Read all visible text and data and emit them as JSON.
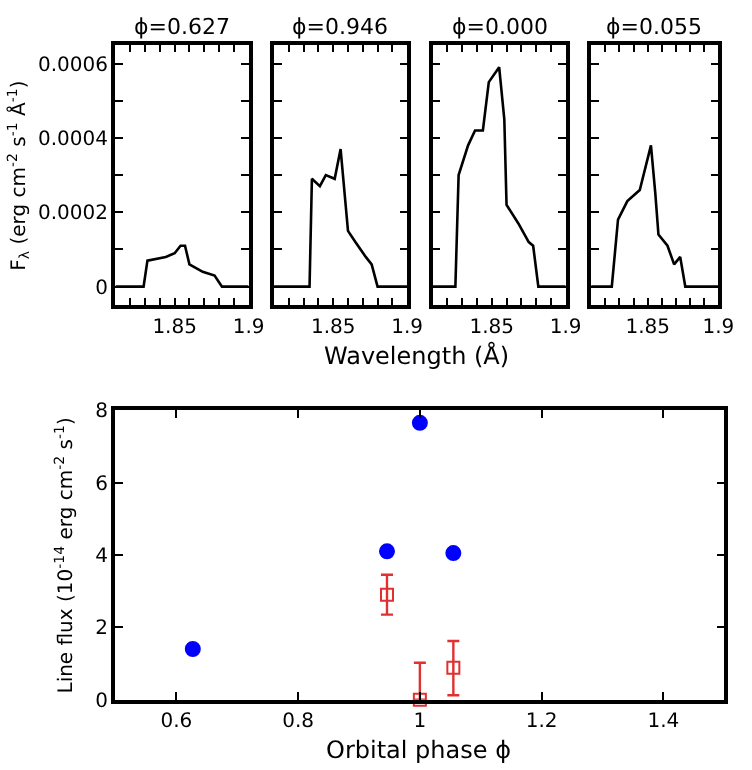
{
  "chart_data": [
    {
      "type": "line",
      "title": "ϕ=0.627",
      "ylabel": "F$_{λ}$ (erg cm$^{-2}$ s$^{-1}$ Å$^{-1}$)",
      "xlabel": "Wavelength (Å)",
      "xlim": [
        1.81,
        1.9
      ],
      "ylim": [
        -5e-05,
        0.00065
      ],
      "xticks": [
        {
          "value": 1.82,
          "label": null
        },
        {
          "value": 1.83,
          "label": null
        },
        {
          "value": 1.84,
          "label": null
        },
        1.85,
        {
          "value": 1.86,
          "label": null
        },
        {
          "value": 1.87,
          "label": null
        },
        {
          "value": 1.88,
          "label": null
        },
        {
          "value": 1.89,
          "label": null
        },
        1.9
      ],
      "yticks": [
        0,
        {
          "value": 0.0001,
          "label": null
        },
        0.0002,
        {
          "value": 0.0003,
          "label": null
        },
        0.0004,
        {
          "value": 0.0005,
          "label": null
        },
        0.0006
      ],
      "series": [
        {
          "color": "#000000",
          "x": [
            1.81,
            1.829,
            1.8316,
            1.844,
            1.85,
            1.854,
            1.857,
            1.86,
            1.869,
            1.877,
            1.882,
            1.9
          ],
          "values": [
            0,
            0,
            7e-05,
            8e-05,
            9e-05,
            0.00011,
            0.00011,
            6e-05,
            4e-05,
            3e-05,
            0,
            0
          ]
        }
      ]
    },
    {
      "type": "line",
      "title": "ϕ=0.946",
      "xlim": [
        1.81,
        1.9
      ],
      "ylim": [
        -5e-05,
        0.00065
      ],
      "xticks": [
        {
          "value": 1.82,
          "label": null
        },
        {
          "value": 1.83,
          "label": null
        },
        {
          "value": 1.84,
          "label": null
        },
        1.85,
        {
          "value": 1.86,
          "label": null
        },
        {
          "value": 1.87,
          "label": null
        },
        {
          "value": 1.88,
          "label": null
        },
        {
          "value": 1.89,
          "label": null
        },
        1.9
      ],
      "yticks": [
        0,
        {
          "value": 0.0001,
          "label": null
        },
        0.0002,
        {
          "value": 0.0003,
          "label": null
        },
        0.0004,
        {
          "value": 0.0005,
          "label": null
        },
        0.0006
      ],
      "tick_labels": "x",
      "series": [
        {
          "color": "#000000",
          "x": [
            1.81,
            1.834,
            1.8356,
            1.841,
            1.845,
            1.851,
            1.855,
            1.86,
            1.865,
            1.872,
            1.876,
            1.88,
            1.9
          ],
          "values": [
            0,
            0,
            0.00029,
            0.00027,
            0.0003,
            0.00029,
            0.00037,
            0.00015,
            0.00012,
            8e-05,
            6e-05,
            0,
            0
          ]
        }
      ]
    },
    {
      "type": "line",
      "title": "ϕ=0.000",
      "xlim": [
        1.81,
        1.9
      ],
      "ylim": [
        -5e-05,
        0.00065
      ],
      "xticks": [
        {
          "value": 1.82,
          "label": null
        },
        {
          "value": 1.83,
          "label": null
        },
        {
          "value": 1.84,
          "label": null
        },
        1.85,
        {
          "value": 1.86,
          "label": null
        },
        {
          "value": 1.87,
          "label": null
        },
        {
          "value": 1.88,
          "label": null
        },
        {
          "value": 1.89,
          "label": null
        },
        1.9
      ],
      "yticks": [
        0,
        {
          "value": 0.0001,
          "label": null
        },
        0.0002,
        {
          "value": 0.0003,
          "label": null
        },
        0.0004,
        {
          "value": 0.0005,
          "label": null
        },
        0.0006
      ],
      "tick_labels": "x",
      "series": [
        {
          "color": "#000000",
          "x": [
            1.81,
            1.8254,
            1.8276,
            1.834,
            1.8387,
            1.844,
            1.848,
            1.855,
            1.8585,
            1.86,
            1.868,
            1.875,
            1.878,
            1.8815,
            1.9
          ],
          "values": [
            0,
            0,
            0.0003,
            0.00038,
            0.00042,
            0.00042,
            0.00055,
            0.00059,
            0.00045,
            0.00022,
            0.00017,
            0.00012,
            0.00011,
            0,
            0
          ]
        }
      ]
    },
    {
      "type": "line",
      "title": "ϕ=0.055",
      "xlim": [
        1.81,
        1.9
      ],
      "ylim": [
        -5e-05,
        0.00065
      ],
      "xticks": [
        {
          "value": 1.82,
          "label": null
        },
        {
          "value": 1.83,
          "label": null
        },
        {
          "value": 1.84,
          "label": null
        },
        1.85,
        {
          "value": 1.86,
          "label": null
        },
        {
          "value": 1.87,
          "label": null
        },
        {
          "value": 1.88,
          "label": null
        },
        {
          "value": 1.89,
          "label": null
        },
        1.9
      ],
      "yticks": [
        0,
        {
          "value": 0.0001,
          "label": null
        },
        0.0002,
        {
          "value": 0.0003,
          "label": null
        },
        0.0004,
        {
          "value": 0.0005,
          "label": null
        },
        0.0006
      ],
      "tick_labels": "x",
      "series": [
        {
          "color": "#000000",
          "x": [
            1.81,
            1.8246,
            1.829,
            1.8356,
            1.8444,
            1.8523,
            1.8554,
            1.8576,
            1.864,
            1.8687,
            1.873,
            1.8766,
            1.9
          ],
          "values": [
            0,
            0,
            0.00018,
            0.00023,
            0.00026,
            0.00038,
            0.00025,
            0.00014,
            0.00011,
            6e-05,
            8e-05,
            0,
            0
          ]
        }
      ]
    },
    {
      "type": "scatter",
      "xlabel": "Orbital phase ϕ",
      "ylabel": "Line flux (10$^{-14}$ erg cm$^{-2}$ s$^{-1}$)",
      "xlim": [
        0.5,
        1.5
      ],
      "ylim": [
        0,
        8
      ],
      "xticks": [
        0.6,
        0.8,
        1,
        1.2,
        1.4
      ],
      "yticks": [
        0,
        2,
        4,
        6,
        8
      ],
      "series": [
        {
          "color": "#0000ff",
          "marker": "circle",
          "x": [
            0.627,
            0.946,
            1.0,
            1.055
          ],
          "values": [
            1.4,
            4.1,
            7.65,
            4.05
          ]
        },
        {
          "color": "#e03030",
          "marker": "square",
          "x": [
            0.946,
            1.0,
            1.055
          ],
          "values": [
            2.9,
            0,
            0.88
          ],
          "errors": [
            [
              2.35,
              3.45
            ],
            [
              0,
              1.02
            ],
            [
              0.12,
              1.62
            ]
          ]
        }
      ]
    }
  ]
}
